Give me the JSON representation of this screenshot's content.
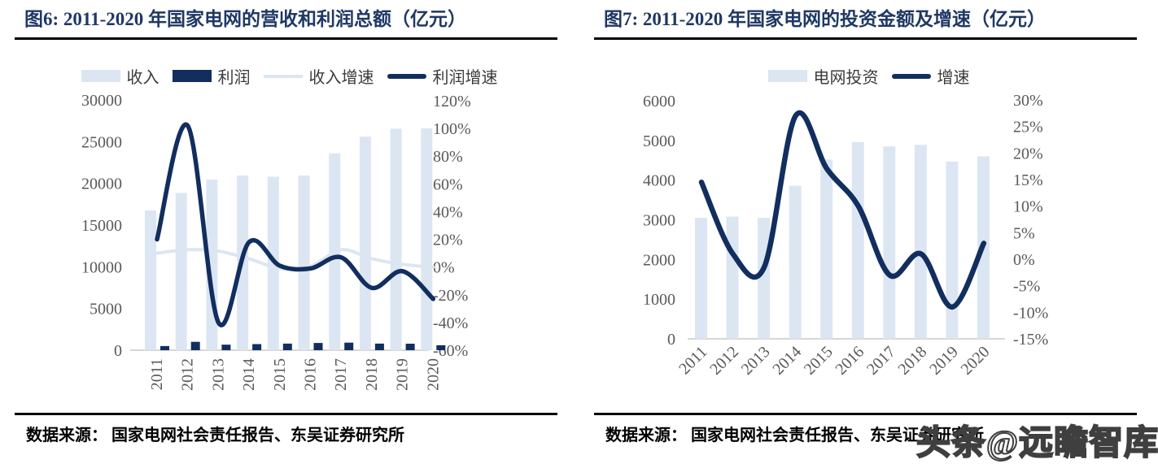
{
  "watermark": "头条@远瞻智库",
  "colors": {
    "navy": "#122E5F",
    "light_blue": "#DCE6F2",
    "title_navy": "#1F3864",
    "axis_line_gray": "#C9C9C9",
    "tick_text_gray": "#595959",
    "rule_black": "#000000"
  },
  "chart_data": [
    {
      "type": "bar+line",
      "title": "图6:  2011-2020 年国家电网的营收和利润总额（亿元）",
      "source": "数据来源：  国家电网社会责任报告、东吴证券研究所",
      "categories": [
        "2011",
        "2012",
        "2013",
        "2014",
        "2015",
        "2016",
        "2017",
        "2018",
        "2019",
        "2020"
      ],
      "left_axis": {
        "min": 0,
        "max": 30000,
        "tick_labels": [
          "0",
          "5000",
          "10000",
          "15000",
          "20000",
          "25000",
          "30000"
        ]
      },
      "right_axis": {
        "min": -60,
        "max": 120,
        "tick_labels": [
          "-60%",
          "-40%",
          "-20%",
          "0%",
          "20%",
          "40%",
          "60%",
          "80%",
          "100%",
          "120%"
        ]
      },
      "legend_position": "top",
      "grid": false,
      "series": [
        {
          "name": "收入",
          "type": "bar",
          "axis": "left",
          "color": "light_blue",
          "values": [
            16750,
            18850,
            20450,
            20950,
            20800,
            20950,
            23600,
            25600,
            26550,
            26600
          ]
        },
        {
          "name": "利润",
          "type": "bar",
          "axis": "left",
          "color": "navy",
          "values": [
            500,
            1000,
            660,
            730,
            790,
            870,
            910,
            790,
            780,
            590
          ]
        },
        {
          "name": "收入增速",
          "type": "line",
          "axis": "right",
          "color": "light_blue",
          "unit": "%",
          "values": [
            10,
            12.5,
            11.5,
            6,
            -1,
            0.5,
            12.5,
            6,
            2,
            0
          ]
        },
        {
          "name": "利润增速",
          "type": "line",
          "axis": "right",
          "color": "navy",
          "unit": "%",
          "values": [
            20,
            102,
            -40,
            18,
            1,
            -1,
            7,
            -15,
            -3,
            -23
          ]
        }
      ]
    },
    {
      "type": "bar+line",
      "title": "图7:  2011-2020 年国家电网的投资金额及增速（亿元）",
      "source": "数据来源：  国家电网社会责任报告、东吴证券研究所",
      "categories": [
        "2011",
        "2012",
        "2013",
        "2014",
        "2015",
        "2016",
        "2017",
        "2018",
        "2019",
        "2020"
      ],
      "left_axis": {
        "min": 0,
        "max": 6000,
        "tick_labels": [
          "0",
          "1000",
          "2000",
          "3000",
          "4000",
          "5000",
          "6000"
        ]
      },
      "right_axis": {
        "min": -15,
        "max": 30,
        "tick_labels": [
          "-15%",
          "-10%",
          "-5%",
          "0%",
          "5%",
          "10%",
          "15%",
          "20%",
          "25%",
          "30%"
        ]
      },
      "legend_position": "top",
      "grid": false,
      "series": [
        {
          "name": "电网投资",
          "type": "bar",
          "axis": "left",
          "color": "light_blue",
          "values": [
            3050,
            3080,
            3050,
            3860,
            4520,
            4960,
            4850,
            4890,
            4470,
            4600
          ]
        },
        {
          "name": "增速",
          "type": "line",
          "axis": "right",
          "color": "navy",
          "unit": "%",
          "values": [
            14.5,
            1,
            -1.5,
            27,
            17,
            10,
            -3,
            1,
            -9,
            3
          ]
        }
      ]
    }
  ]
}
